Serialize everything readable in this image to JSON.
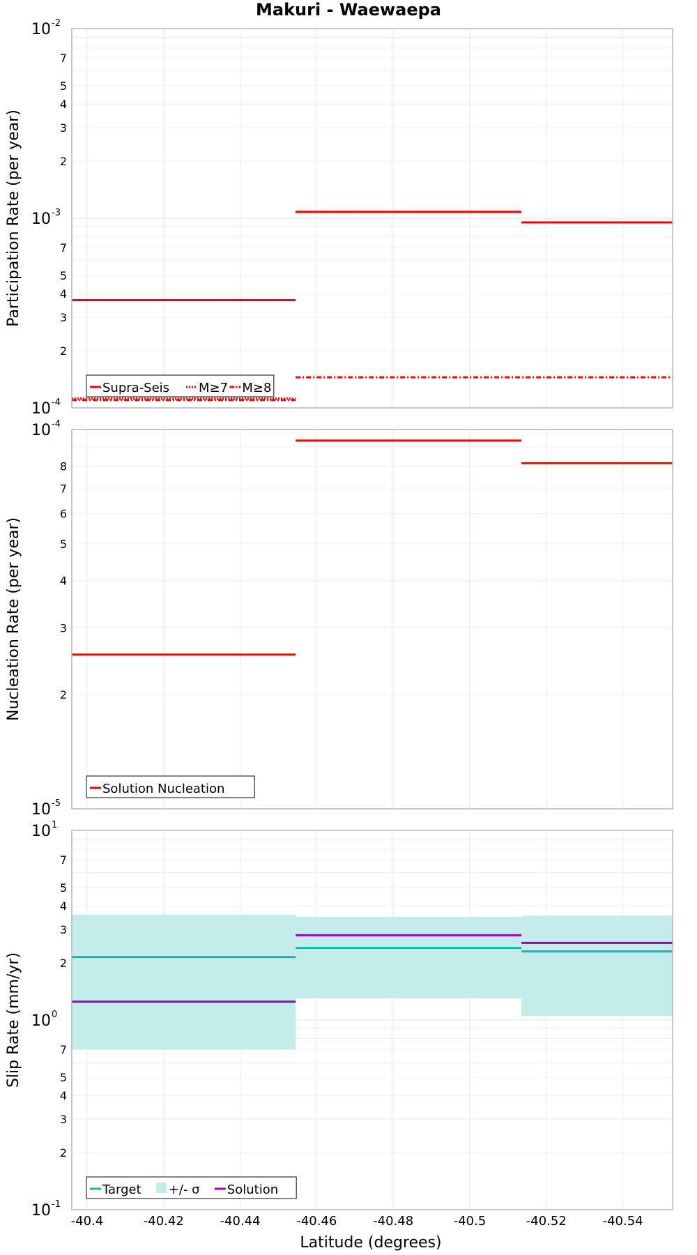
{
  "chart_data": {
    "type": "line",
    "title": "Makuri - Waewaepa",
    "xlabel": "Latitude (degrees)",
    "xlim": [
      -40.396,
      -40.553
    ],
    "x_ticks": [
      -40.4,
      -40.42,
      -40.44,
      -40.46,
      -40.48,
      -40.5,
      -40.52,
      -40.54
    ],
    "x_tick_labels": [
      "-40.4",
      "-40.42",
      "-40.44",
      "-40.46",
      "-40.48",
      "-40.5",
      "-40.52",
      "-40.54"
    ],
    "grid": true,
    "panels": [
      {
        "ylabel": "Participation Rate (per year)",
        "yscale": "log",
        "ylim": [
          0.0001,
          0.01
        ],
        "major_ticks": [
          {
            "base": "10",
            "exp": "-4"
          },
          {
            "base": "10",
            "exp": "-3"
          },
          {
            "base": "10",
            "exp": "-2"
          }
        ],
        "minor_tick_labels": [
          "2",
          "3",
          "4",
          "5",
          "7",
          "2",
          "3",
          "4",
          "5",
          "7"
        ],
        "legend_position": "bottom-left",
        "series": [
          {
            "name": "Supra-Seis",
            "color": "#ff0000",
            "style": "solid",
            "segments": [
              {
                "x": [
                  -40.396,
                  -40.4545
                ],
                "y": 0.00037
              },
              {
                "x": [
                  -40.4545,
                  -40.5135
                ],
                "y": 0.00108
              },
              {
                "x": [
                  -40.5135,
                  -40.553
                ],
                "y": 0.00095
              }
            ]
          },
          {
            "name": "M≥7",
            "color": "#ff0000",
            "style": "dotted",
            "segments": [
              {
                "x": [
                  -40.396,
                  -40.4545
                ],
                "y": 0.000112
              },
              {
                "x": [
                  -40.4545,
                  -40.5135
                ],
                "y": 0.00108
              },
              {
                "x": [
                  -40.5135,
                  -40.553
                ],
                "y": 0.00095
              }
            ]
          },
          {
            "name": "M≥8",
            "color": "#ff0000",
            "style": "dashdot",
            "segments": [
              {
                "x": [
                  -40.396,
                  -40.4545
                ],
                "y": 0.00011
              },
              {
                "x": [
                  -40.4545,
                  -40.553
                ],
                "y": 0.000145
              }
            ]
          }
        ]
      },
      {
        "ylabel": "Nucleation Rate (per year)",
        "yscale": "log",
        "ylim": [
          1e-05,
          0.0001
        ],
        "major_ticks": [
          {
            "base": "10",
            "exp": "-5"
          },
          {
            "base": "10",
            "exp": "-4"
          }
        ],
        "minor_tick_labels": [
          "2",
          "3",
          "4",
          "5",
          "6",
          "7",
          "8"
        ],
        "legend_position": "bottom-left",
        "series": [
          {
            "name": "Solution Nucleation",
            "color": "#ff0000",
            "style": "solid",
            "segments": [
              {
                "x": [
                  -40.396,
                  -40.4545
                ],
                "y": 2.55e-05
              },
              {
                "x": [
                  -40.4545,
                  -40.5135
                ],
                "y": 9.35e-05
              },
              {
                "x": [
                  -40.5135,
                  -40.553
                ],
                "y": 8.15e-05
              }
            ]
          }
        ]
      },
      {
        "ylabel": "Slip Rate (mm/yr)",
        "yscale": "log",
        "ylim": [
          0.1,
          10
        ],
        "major_ticks": [
          {
            "base": "10",
            "exp": "-1"
          },
          {
            "base": "10",
            "exp": "0"
          },
          {
            "base": "10",
            "exp": "1"
          }
        ],
        "minor_tick_labels": [
          "2",
          "3",
          "4",
          "5",
          "7",
          "2",
          "3",
          "4",
          "5",
          "7"
        ],
        "legend_position": "bottom-left",
        "series": [
          {
            "name": "Target",
            "color": "#1ab3ad",
            "style": "solid",
            "segments": [
              {
                "x": [
                  -40.396,
                  -40.4545
                ],
                "y": 2.15
              },
              {
                "x": [
                  -40.4545,
                  -40.5135
                ],
                "y": 2.4
              },
              {
                "x": [
                  -40.5135,
                  -40.553
                ],
                "y": 2.3
              }
            ]
          },
          {
            "name": "+/- σ",
            "color": "#c3ecea",
            "style": "band",
            "segments": [
              {
                "x": [
                  -40.396,
                  -40.4545
                ],
                "y": [
                  0.7,
                  3.6
                ]
              },
              {
                "x": [
                  -40.4545,
                  -40.5135
                ],
                "y": [
                  1.3,
                  3.5
                ]
              },
              {
                "x": [
                  -40.5135,
                  -40.553
                ],
                "y": [
                  1.05,
                  3.55
                ]
              }
            ]
          },
          {
            "name": "Solution",
            "color": "#a000b4",
            "style": "solid",
            "segments": [
              {
                "x": [
                  -40.396,
                  -40.4545
                ],
                "y": 1.25
              },
              {
                "x": [
                  -40.4545,
                  -40.5135
                ],
                "y": 2.8
              },
              {
                "x": [
                  -40.5135,
                  -40.553
                ],
                "y": 2.55
              }
            ]
          }
        ]
      }
    ]
  }
}
